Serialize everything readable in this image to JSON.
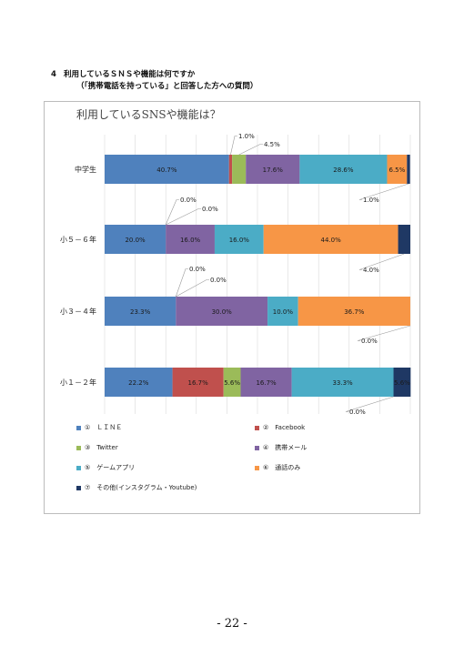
{
  "heading": {
    "number": "4",
    "title": "利用しているＳＮＳや機能は何ですか",
    "subtitle": "（「携帯電話を持っている」と回答した方への質問）"
  },
  "page_number": "- 22 -",
  "chart_data": {
    "type": "bar",
    "orientation": "horizontal",
    "stacked": "100%",
    "title": "利用しているSNSや機能は？",
    "categories": [
      "中学生",
      "小５－６年",
      "小３－４年",
      "小１－２年"
    ],
    "series": [
      {
        "name": "①　ＬＩＮＥ",
        "color": "#4f81bd",
        "values": [
          40.7,
          20.0,
          23.3,
          22.2
        ]
      },
      {
        "name": "②　Facebook",
        "color": "#c0504d",
        "values": [
          1.0,
          0.0,
          0.0,
          16.7
        ]
      },
      {
        "name": "③　Twitter",
        "color": "#9bbb59",
        "values": [
          4.5,
          0.0,
          0.0,
          5.6
        ]
      },
      {
        "name": "④　携帯メール",
        "color": "#8064a2",
        "values": [
          17.6,
          16.0,
          30.0,
          16.7
        ]
      },
      {
        "name": "⑤　ゲームアプリ",
        "color": "#4bacc6",
        "values": [
          28.6,
          16.0,
          10.0,
          33.3
        ]
      },
      {
        "name": "⑥　通話のみ",
        "color": "#f79646",
        "values": [
          6.5,
          44.0,
          36.7,
          0.0
        ]
      },
      {
        "name": "⑦　その他(インスタグラム・Youtube)",
        "color": "#1f3864",
        "values": [
          1.0,
          4.0,
          0.0,
          5.6
        ]
      }
    ],
    "labels": [
      [
        "40.7%",
        "1.0%",
        "4.5%",
        "17.6%",
        "28.6%",
        "6.5%",
        "1.0%"
      ],
      [
        "20.0%",
        "0.0%",
        "0.0%",
        "16.0%",
        "16.0%",
        "44.0%",
        "4.0%"
      ],
      [
        "23.3%",
        "0.0%",
        "0.0%",
        "30.0%",
        "10.0%",
        "36.7%",
        "0.0%"
      ],
      [
        "22.2%",
        "16.7%",
        "5.6%",
        "16.7%",
        "33.3%",
        "0.0%",
        "5.6%"
      ]
    ],
    "xlim": [
      0,
      100
    ],
    "grid": true,
    "legend_position": "bottom"
  }
}
